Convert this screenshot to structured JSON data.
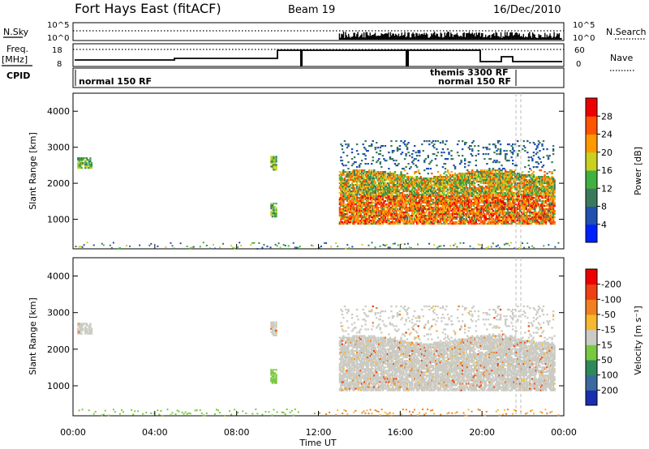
{
  "header": {
    "title": "Fort Hays East (fitACF)",
    "beam": "Beam 19",
    "date": "16/Dec/2010"
  },
  "top_panels": {
    "nsky_label": "N.Sky",
    "nsearch_label": "N.Search",
    "nsky_ticks": [
      "10^5",
      "10^0"
    ],
    "nsky_right_ticks": [
      "10^5",
      "10^0"
    ],
    "freq_label": "Freq.",
    "freq_unit": "[MHz]",
    "freq_ticks": [
      "18",
      "8"
    ],
    "nave_label": "Nave",
    "nave_ticks": [
      "60",
      "0"
    ],
    "cpid_label": "CPID",
    "cpid_entries": [
      "normal 150 RF",
      "themis 3300 RF",
      "normal 150 RF"
    ]
  },
  "chart_data": [
    {
      "type": "heatmap",
      "panel": "power",
      "ylabel": "Slant Range [km]",
      "ylim": [
        180,
        4500
      ],
      "yticks": [
        "1000",
        "2000",
        "3000",
        "4000"
      ],
      "colorbar_label": "Power [dB]",
      "colorbar_ticks": [
        "4",
        "8",
        "12",
        "16",
        "20",
        "24",
        "28"
      ],
      "colorbar_colors": [
        "#0020ff",
        "#2050b0",
        "#3a7a5a",
        "#40b040",
        "#c8d020",
        "#ff9900",
        "#ff5500",
        "#ee0000"
      ],
      "regions": [
        {
          "t_start": 0.2,
          "t_end": 0.9,
          "r_low": 2450,
          "r_high": 2750,
          "intensity": "medium"
        },
        {
          "t_start": 9.65,
          "t_end": 9.95,
          "r_low": 1100,
          "r_high": 1500,
          "intensity": "medium"
        },
        {
          "t_start": 9.65,
          "t_end": 9.95,
          "r_low": 2400,
          "r_high": 2800,
          "intensity": "medium"
        },
        {
          "t_start": 13.0,
          "t_end": 23.5,
          "r_low": 900,
          "r_high": 3200,
          "intensity": "high"
        }
      ]
    },
    {
      "type": "heatmap",
      "panel": "velocity",
      "ylabel": "Slant Range [km]",
      "ylim": [
        180,
        4500
      ],
      "yticks": [
        "1000",
        "2000",
        "3000",
        "4000"
      ],
      "colorbar_label": "Velocity [m s⁻¹]",
      "colorbar_ticks": [
        "200",
        "100",
        "50",
        "15",
        "-15",
        "-50",
        "-100",
        "-200"
      ],
      "colorbar_colors": [
        "#1a2eb0",
        "#3a6aa0",
        "#2e8a5a",
        "#7ac840",
        "#cbcbc3",
        "#f5b830",
        "#f08020",
        "#ee4010",
        "#ee0000"
      ],
      "regions": [
        {
          "t_start": 0.2,
          "t_end": 0.9,
          "r_low": 2450,
          "r_high": 2750,
          "velocity_class": "ground"
        },
        {
          "t_start": 9.65,
          "t_end": 9.95,
          "r_low": 1100,
          "r_high": 1500,
          "velocity_class": "positive"
        },
        {
          "t_start": 13.0,
          "t_end": 23.5,
          "r_low": 900,
          "r_high": 3200,
          "velocity_class": "ground"
        }
      ]
    }
  ],
  "time_axis": {
    "xlabel": "Time UT",
    "xlim": [
      0,
      24
    ],
    "ticks": [
      "00:00",
      "04:00",
      "08:00",
      "12:00",
      "16:00",
      "20:00",
      "00:00"
    ]
  }
}
